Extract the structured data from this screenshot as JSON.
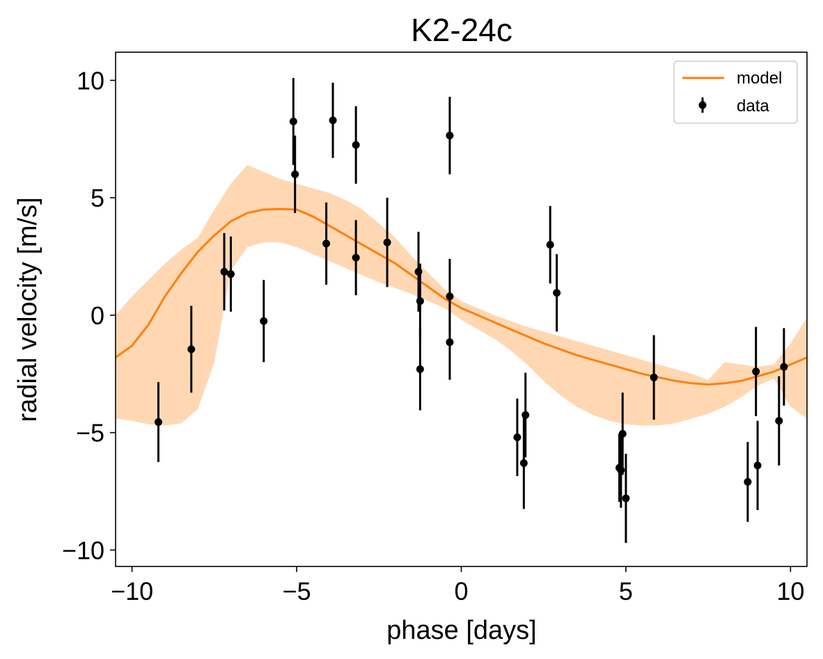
{
  "chart_data": {
    "type": "scatter",
    "title": "K2-24c",
    "xlabel": "phase [days]",
    "ylabel": "radial velocity [m/s]",
    "xlim": [
      -10.5,
      10.5
    ],
    "ylim": [
      -10.7,
      11.2
    ],
    "xticks": [
      -10,
      -5,
      0,
      5,
      10
    ],
    "xtick_labels": [
      "−10",
      "−5",
      "0",
      "5",
      "10"
    ],
    "yticks": [
      -10,
      -5,
      0,
      5,
      10
    ],
    "ytick_labels": [
      "−10",
      "−5",
      "0",
      "5",
      "10"
    ],
    "grid": false,
    "legend": {
      "placement": "top-right",
      "entries": [
        "model",
        "data"
      ]
    },
    "colors": {
      "model": "#ff7f0e",
      "band": "#ffd8b3",
      "data": "#000000"
    },
    "series": [
      {
        "name": "model",
        "kind": "line",
        "x": [
          -10.5,
          -10.0,
          -9.5,
          -9.0,
          -8.5,
          -8.0,
          -7.5,
          -7.0,
          -6.5,
          -6.0,
          -5.5,
          -5.0,
          -4.5,
          -4.0,
          -3.5,
          -3.0,
          -2.5,
          -2.0,
          -1.5,
          -1.0,
          -0.5,
          0.0,
          0.5,
          1.0,
          1.5,
          2.0,
          2.5,
          3.0,
          3.5,
          4.0,
          4.5,
          5.0,
          5.5,
          6.0,
          6.5,
          7.0,
          7.5,
          8.0,
          8.5,
          9.0,
          9.5,
          10.0,
          10.5
        ],
        "y": [
          -1.8,
          -1.3,
          -0.4,
          0.8,
          1.8,
          2.7,
          3.4,
          4.0,
          4.35,
          4.5,
          4.52,
          4.5,
          4.2,
          3.8,
          3.4,
          3.0,
          2.6,
          2.2,
          1.7,
          1.2,
          0.7,
          0.3,
          0.0,
          -0.3,
          -0.6,
          -0.9,
          -1.2,
          -1.45,
          -1.7,
          -1.9,
          -2.1,
          -2.3,
          -2.5,
          -2.65,
          -2.8,
          -2.9,
          -2.95,
          -2.9,
          -2.8,
          -2.6,
          -2.4,
          -2.1,
          -1.8
        ]
      },
      {
        "name": "",
        "kind": "band",
        "x": [
          -10.5,
          -10.0,
          -9.5,
          -9.0,
          -8.5,
          -8.0,
          -7.5,
          -7.0,
          -6.5,
          -6.0,
          -5.5,
          -5.0,
          -4.5,
          -4.0,
          -3.5,
          -3.0,
          -2.5,
          -2.0,
          -1.5,
          -1.0,
          -0.5,
          0.0,
          0.5,
          1.0,
          1.5,
          2.0,
          2.5,
          3.0,
          3.5,
          4.0,
          4.5,
          5.0,
          5.5,
          6.0,
          6.5,
          7.0,
          7.5,
          8.0,
          8.5,
          9.0,
          9.5,
          10.0,
          10.5
        ],
        "y_low": [
          -4.4,
          -4.5,
          -4.65,
          -4.7,
          -4.6,
          -4.0,
          -2.0,
          1.9,
          2.9,
          3.1,
          3.1,
          2.9,
          2.6,
          2.3,
          2.0,
          1.7,
          1.4,
          1.15,
          0.9,
          0.6,
          0.3,
          -0.2,
          -0.6,
          -1.0,
          -1.5,
          -2.1,
          -2.8,
          -3.4,
          -3.9,
          -4.25,
          -4.5,
          -4.65,
          -4.7,
          -4.7,
          -4.6,
          -4.4,
          -4.2,
          -3.9,
          -3.5,
          -3.0,
          -2.7,
          -3.9,
          -4.4
        ],
        "y_high": [
          0.0,
          0.8,
          1.5,
          2.2,
          2.8,
          3.3,
          4.5,
          5.6,
          6.4,
          6.1,
          5.8,
          5.6,
          5.4,
          5.2,
          4.9,
          4.5,
          3.9,
          3.3,
          2.5,
          1.8,
          1.1,
          0.6,
          0.3,
          0.0,
          -0.25,
          -0.5,
          -0.7,
          -0.9,
          -1.1,
          -1.3,
          -1.5,
          -1.7,
          -1.9,
          -2.1,
          -2.3,
          -2.5,
          -2.75,
          -2.0,
          -2.1,
          -2.2,
          -2.1,
          -1.2,
          -0.1
        ]
      },
      {
        "name": "data",
        "kind": "errorbar",
        "x": [
          -9.2,
          -8.2,
          -7.2,
          -7.0,
          -6.0,
          -5.1,
          -5.05,
          -4.1,
          -3.9,
          -3.2,
          -3.2,
          -2.25,
          -1.3,
          -1.25,
          -1.25,
          -0.35,
          -0.35,
          -0.35,
          1.7,
          1.9,
          1.95,
          2.7,
          2.9,
          4.8,
          4.85,
          4.9,
          5.0,
          5.85,
          8.7,
          8.95,
          9.0,
          9.65,
          9.8
        ],
        "y": [
          -4.55,
          -1.45,
          1.85,
          1.75,
          -0.25,
          8.25,
          6.0,
          3.05,
          8.3,
          7.25,
          2.45,
          3.1,
          1.85,
          0.6,
          -2.3,
          7.65,
          0.8,
          -1.15,
          -5.2,
          -6.3,
          -4.25,
          3.0,
          0.95,
          -6.5,
          -6.6,
          -5.05,
          -7.8,
          -2.65,
          -7.1,
          -2.4,
          -6.4,
          -4.5,
          -2.2
        ],
        "yerr": [
          1.7,
          1.85,
          1.65,
          1.6,
          1.75,
          1.85,
          1.65,
          1.75,
          1.6,
          1.65,
          1.6,
          1.9,
          1.7,
          1.6,
          1.75,
          1.65,
          1.6,
          1.6,
          1.65,
          1.95,
          1.8,
          1.65,
          1.65,
          1.45,
          1.6,
          1.75,
          1.9,
          1.8,
          1.7,
          1.9,
          1.9,
          1.9,
          1.65
        ]
      }
    ]
  }
}
